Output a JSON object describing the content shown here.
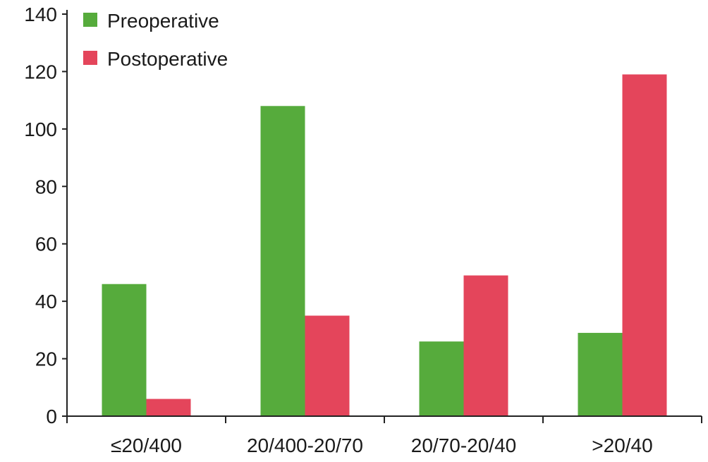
{
  "chart_data": {
    "type": "bar",
    "title": "",
    "xlabel": "",
    "ylabel": "",
    "categories": [
      "≤20/400",
      "20/400-20/70",
      "20/70-20/40",
      ">20/40"
    ],
    "series": [
      {
        "name": "Preoperative",
        "color": "#56ab3c",
        "values": [
          46,
          108,
          26,
          29
        ]
      },
      {
        "name": "Postoperative",
        "color": "#e4455b",
        "values": [
          6,
          35,
          49,
          119
        ]
      }
    ],
    "ylim": [
      0,
      140
    ],
    "yticks": [
      0,
      20,
      40,
      60,
      80,
      100,
      120,
      140
    ],
    "grid": false,
    "legend": "top-left"
  }
}
